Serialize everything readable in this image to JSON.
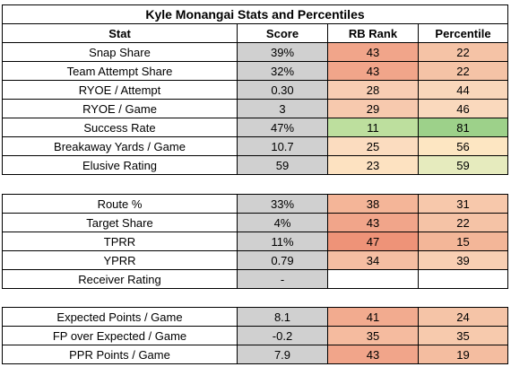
{
  "title": "Kyle Monangai Stats and Percentiles",
  "headers": [
    "Stat",
    "Score",
    "RB Rank",
    "Percentile"
  ],
  "sections": [
    {
      "rows": [
        {
          "stat": "Snap Share",
          "score": "39%",
          "rank": "43",
          "percentile": "22",
          "rank_color": "#f1a58a",
          "pct_color": "#f5c3a6"
        },
        {
          "stat": "Team Attempt Share",
          "score": "32%",
          "rank": "43",
          "percentile": "22",
          "rank_color": "#f1a58a",
          "pct_color": "#f5c3a6"
        },
        {
          "stat": "RYOE / Attempt",
          "score": "0.30",
          "rank": "28",
          "percentile": "44",
          "rank_color": "#f8cdb3",
          "pct_color": "#f9d7bb"
        },
        {
          "stat": "RYOE / Game",
          "score": "3",
          "rank": "29",
          "percentile": "46",
          "rank_color": "#f7c9ae",
          "pct_color": "#fad9bd"
        },
        {
          "stat": "Success Rate",
          "score": "47%",
          "rank": "11",
          "percentile": "81",
          "rank_color": "#bddf9e",
          "pct_color": "#9dd18a"
        },
        {
          "stat": "Breakaway Yards / Game",
          "score": "10.7",
          "rank": "25",
          "percentile": "56",
          "rank_color": "#fbdcbf",
          "pct_color": "#fde6c2"
        },
        {
          "stat": "Elusive Rating",
          "score": "59",
          "rank": "23",
          "percentile": "59",
          "rank_color": "#fde2c1",
          "pct_color": "#e6ebbe"
        }
      ]
    },
    {
      "rows": [
        {
          "stat": "Route %",
          "score": "33%",
          "rank": "38",
          "percentile": "31",
          "rank_color": "#f4b598",
          "pct_color": "#f7c8ab"
        },
        {
          "stat": "Target Share",
          "score": "4%",
          "rank": "43",
          "percentile": "22",
          "rank_color": "#f1a58a",
          "pct_color": "#f5c3a6"
        },
        {
          "stat": "TPRR",
          "score": "11%",
          "rank": "47",
          "percentile": "15",
          "rank_color": "#ee9378",
          "pct_color": "#f3b698"
        },
        {
          "stat": "YPRR",
          "score": "0.79",
          "rank": "34",
          "percentile": "39",
          "rank_color": "#f5bea2",
          "pct_color": "#f8cfb3"
        },
        {
          "stat": "Receiver Rating",
          "score": "-",
          "rank": "",
          "percentile": "",
          "rank_color": "#ffffff",
          "pct_color": "#ffffff"
        }
      ]
    },
    {
      "rows": [
        {
          "stat": "Expected Points / Game",
          "score": "8.1",
          "rank": "41",
          "percentile": "24",
          "rank_color": "#f2ab8f",
          "pct_color": "#f5c4a7"
        },
        {
          "stat": "FP over Expected / Game",
          "score": "-0.2",
          "rank": "35",
          "percentile": "35",
          "rank_color": "#f5bb9f",
          "pct_color": "#f7caad"
        },
        {
          "stat": "PPR Points / Game",
          "score": "7.9",
          "rank": "43",
          "percentile": "19",
          "rank_color": "#f1a58a",
          "pct_color": "#f4bda0"
        }
      ]
    }
  ],
  "colors": {
    "score_bg": "#d0d0d0",
    "border": "#000000"
  }
}
